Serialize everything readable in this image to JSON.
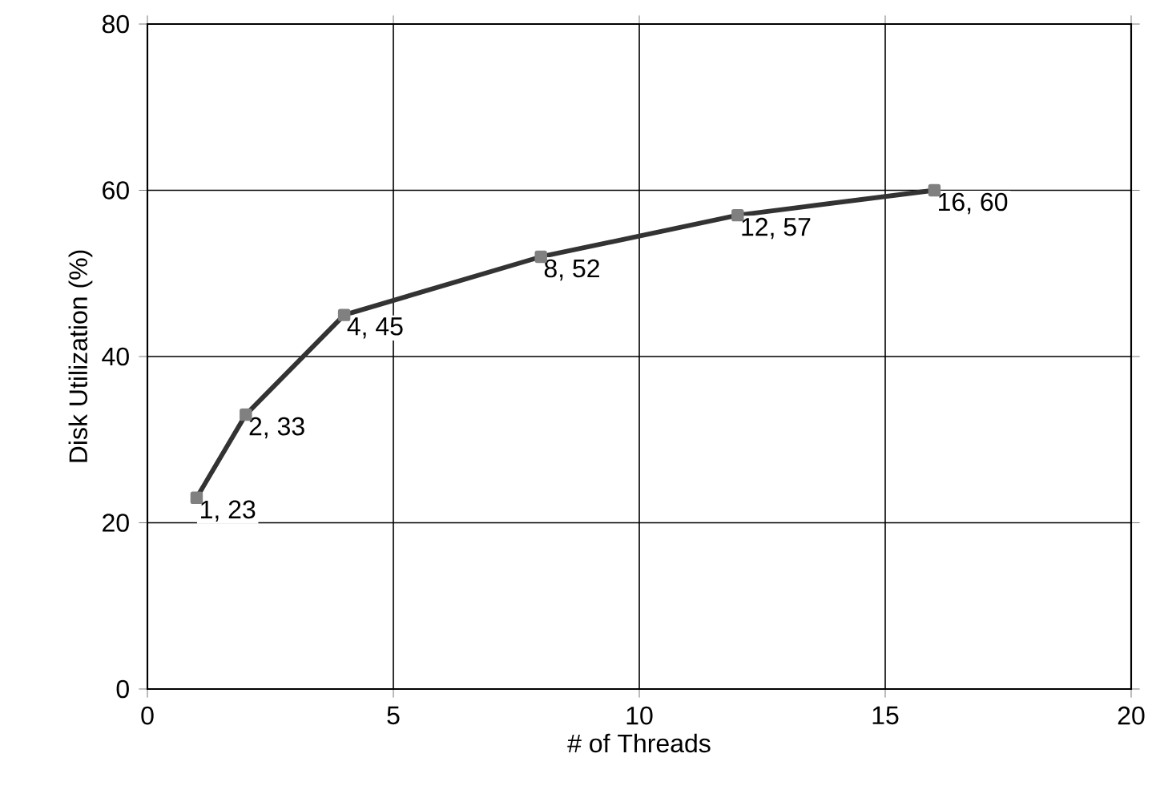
{
  "chart_data": {
    "type": "line",
    "xlabel": "# of Threads",
    "ylabel": "Disk Utilization (%)",
    "x": [
      1,
      2,
      4,
      8,
      12,
      16
    ],
    "series": [
      {
        "color": "#333333",
        "values": [
          23,
          33,
          45,
          52,
          57,
          60
        ],
        "value_labels": [
          "1, 23",
          "2, 33",
          "4, 45",
          "8, 52",
          "12, 57",
          "16, 60"
        ]
      }
    ],
    "xlim": [
      0,
      20
    ],
    "xticks": [
      0,
      5,
      10,
      15,
      20
    ],
    "ylim": [
      0,
      80
    ],
    "yticks": [
      0,
      20,
      40,
      60,
      80
    ],
    "grid": true,
    "marker": "square",
    "line_style": "solid"
  }
}
